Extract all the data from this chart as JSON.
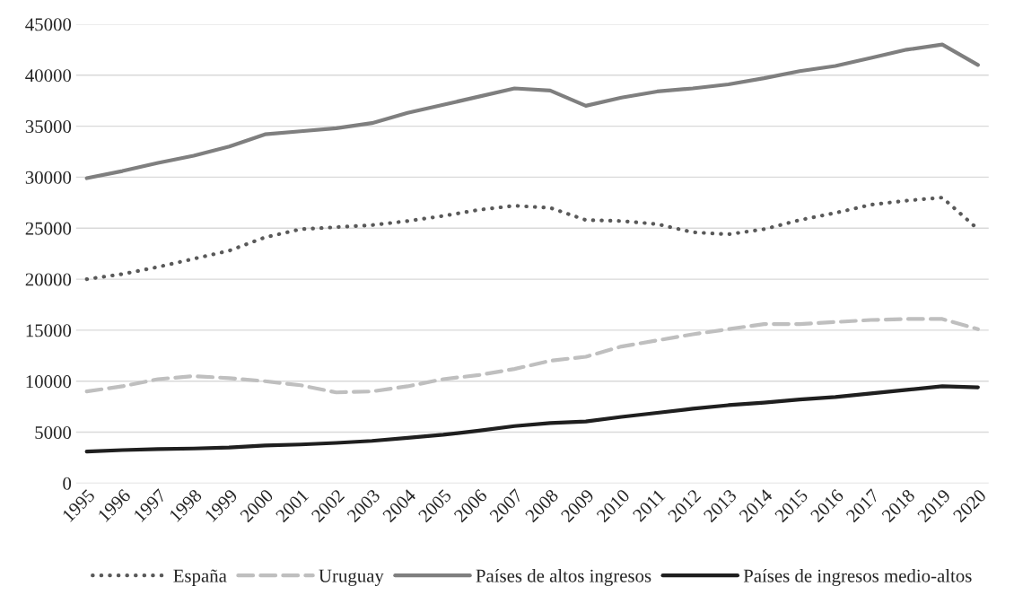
{
  "chart_data": {
    "type": "line",
    "categories": [
      "1995",
      "1996",
      "1997",
      "1998",
      "1999",
      "2000",
      "2001",
      "2002",
      "2003",
      "2004",
      "2005",
      "2006",
      "2007",
      "2008",
      "2009",
      "2010",
      "2011",
      "2012",
      "2013",
      "2014",
      "2015",
      "2016",
      "2017",
      "2018",
      "2019",
      "2020"
    ],
    "series": [
      {
        "name": "España",
        "color": "#595959",
        "line_style": "dotted",
        "values": [
          20000,
          20500,
          21200,
          22000,
          22800,
          24100,
          24900,
          25100,
          25300,
          25700,
          26200,
          26800,
          27200,
          27000,
          25800,
          25700,
          25400,
          24600,
          24400,
          24900,
          25800,
          26500,
          27300,
          27700,
          28000,
          24900
        ]
      },
      {
        "name": "Uruguay",
        "color": "#bfbfbf",
        "line_style": "dashed",
        "values": [
          9000,
          9500,
          10200,
          10500,
          10300,
          10000,
          9600,
          8900,
          9000,
          9500,
          10200,
          10600,
          11200,
          12000,
          12400,
          13400,
          14000,
          14600,
          15100,
          15600,
          15600,
          15800,
          16000,
          16100,
          16100,
          15100
        ]
      },
      {
        "name": "Países de altos ingresos",
        "color": "#7f7f7f",
        "line_style": "solid",
        "values": [
          29900,
          30600,
          31400,
          32100,
          33000,
          34200,
          34500,
          34800,
          35300,
          36300,
          37100,
          37900,
          38700,
          38500,
          37000,
          37800,
          38400,
          38700,
          39100,
          39700,
          40400,
          40900,
          41700,
          42500,
          43000,
          41000
        ]
      },
      {
        "name": "Países de ingresos medio-altos",
        "color": "#1f1f1f",
        "line_style": "solid",
        "values": [
          3100,
          3250,
          3350,
          3400,
          3500,
          3700,
          3800,
          3950,
          4150,
          4450,
          4750,
          5150,
          5600,
          5900,
          6050,
          6500,
          6900,
          7300,
          7650,
          7900,
          8200,
          8450,
          8800,
          9150,
          9500,
          9400
        ]
      }
    ],
    "ylim": [
      0,
      45000
    ],
    "yticks": [
      0,
      5000,
      10000,
      15000,
      20000,
      25000,
      30000,
      35000,
      40000,
      45000
    ],
    "grid": "y",
    "legend": "bottom",
    "marker": "none"
  }
}
